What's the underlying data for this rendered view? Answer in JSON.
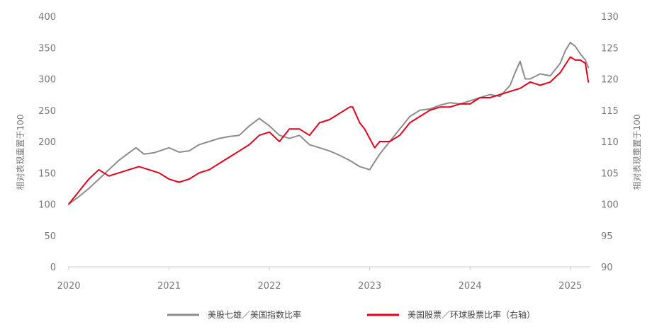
{
  "chart_data": {
    "type": "line",
    "title": "",
    "xlabel": "",
    "ylabel_left": "相对表现重置于100",
    "ylabel_right": "相对表现重置于100",
    "x_ticks": [
      "2020",
      "2021",
      "2022",
      "2023",
      "2024",
      "2025"
    ],
    "x_range": [
      2020.0,
      2025.2
    ],
    "y_left_ticks": [
      "0",
      "50",
      "100",
      "150",
      "200",
      "250",
      "300",
      "350",
      "400"
    ],
    "y_left_range": [
      0,
      400
    ],
    "y_right_ticks": [
      "90",
      "95",
      "100",
      "105",
      "110",
      "115",
      "120",
      "125",
      "130"
    ],
    "y_right_range": [
      90,
      130
    ],
    "grid": false,
    "legend_position": "bottom",
    "series": [
      {
        "name": "美股七雄／美国指数比率",
        "axis": "left",
        "color": "#8c8c8c",
        "x": [
          2020.0,
          2020.1,
          2020.2,
          2020.3,
          2020.4,
          2020.5,
          2020.6,
          2020.67,
          2020.75,
          2020.85,
          2021.0,
          2021.1,
          2021.2,
          2021.3,
          2021.4,
          2021.5,
          2021.6,
          2021.7,
          2021.8,
          2021.9,
          2022.0,
          2022.1,
          2022.2,
          2022.3,
          2022.4,
          2022.5,
          2022.6,
          2022.7,
          2022.8,
          2022.9,
          2023.0,
          2023.1,
          2023.2,
          2023.3,
          2023.4,
          2023.5,
          2023.6,
          2023.7,
          2023.8,
          2023.9,
          2024.0,
          2024.1,
          2024.2,
          2024.3,
          2024.4,
          2024.45,
          2024.5,
          2024.55,
          2024.6,
          2024.7,
          2024.8,
          2024.9,
          2024.95,
          2025.0,
          2025.05,
          2025.1,
          2025.15,
          2025.18
        ],
        "values": [
          100,
          112,
          125,
          140,
          155,
          170,
          182,
          190,
          180,
          182,
          190,
          183,
          185,
          195,
          200,
          205,
          208,
          210,
          225,
          237,
          225,
          210,
          205,
          210,
          195,
          190,
          185,
          178,
          170,
          160,
          155,
          180,
          200,
          220,
          240,
          250,
          252,
          258,
          262,
          260,
          265,
          270,
          275,
          272,
          290,
          310,
          328,
          300,
          300,
          308,
          305,
          325,
          345,
          358,
          352,
          340,
          330,
          318
        ]
      },
      {
        "name": "美国股票／环球股票比率（右轴）",
        "axis": "right",
        "color": "#e3001b",
        "x": [
          2020.0,
          2020.05,
          2020.1,
          2020.15,
          2020.2,
          2020.3,
          2020.4,
          2020.5,
          2020.6,
          2020.7,
          2020.8,
          2020.9,
          2021.0,
          2021.1,
          2021.2,
          2021.3,
          2021.4,
          2021.5,
          2021.6,
          2021.7,
          2021.8,
          2021.9,
          2022.0,
          2022.1,
          2022.2,
          2022.3,
          2022.4,
          2022.5,
          2022.6,
          2022.7,
          2022.8,
          2022.83,
          2022.9,
          2022.95,
          2023.0,
          2023.05,
          2023.1,
          2023.2,
          2023.3,
          2023.4,
          2023.5,
          2023.6,
          2023.7,
          2023.8,
          2023.9,
          2024.0,
          2024.1,
          2024.2,
          2024.3,
          2024.4,
          2024.5,
          2024.6,
          2024.7,
          2024.8,
          2024.9,
          2025.0,
          2025.05,
          2025.1,
          2025.15,
          2025.18
        ],
        "values": [
          100,
          101,
          102,
          103,
          104,
          105.5,
          104.5,
          105,
          105.5,
          106,
          105.5,
          105,
          104,
          103.5,
          104,
          105,
          105.5,
          106.5,
          107.5,
          108.5,
          109.5,
          111,
          111.5,
          110,
          112,
          112,
          111,
          113,
          113.5,
          114.5,
          115.5,
          115.5,
          113,
          112,
          110.5,
          109,
          110,
          110,
          111,
          113,
          114,
          115,
          115.5,
          115.5,
          116,
          116,
          117,
          117,
          117.5,
          118,
          118.5,
          119.5,
          119,
          119.5,
          121,
          123.5,
          123,
          123,
          122.5,
          119.5
        ]
      }
    ]
  }
}
